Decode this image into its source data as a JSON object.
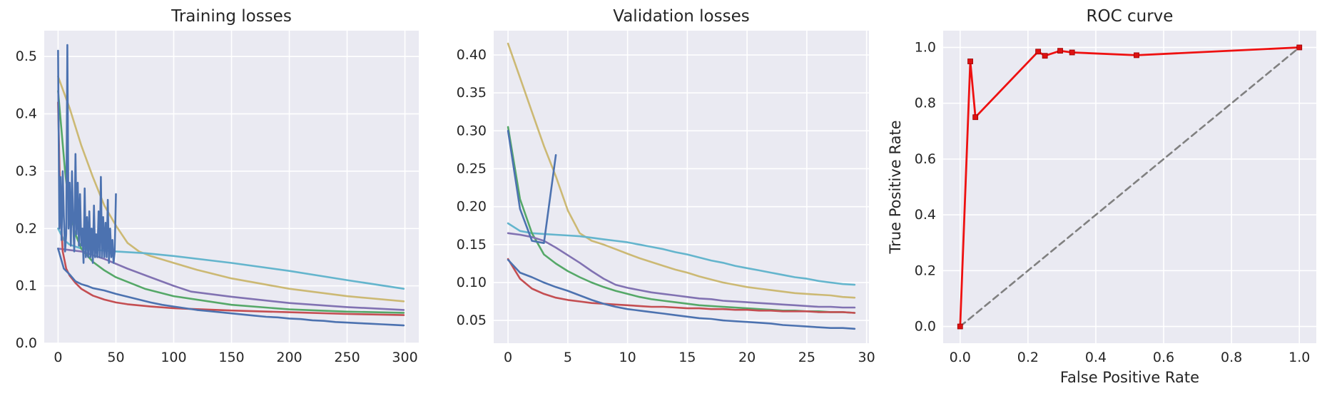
{
  "chart_data": [
    {
      "type": "line",
      "title": "Training losses",
      "xlabel": "",
      "ylabel": "",
      "xlim": [
        -12,
        312
      ],
      "ylim": [
        0,
        0.545
      ],
      "xticks": [
        "0",
        "50",
        "100",
        "150",
        "200",
        "250",
        "300"
      ],
      "yticks": [
        "0.0",
        "0.1",
        "0.2",
        "0.3",
        "0.4",
        "0.5"
      ],
      "grid": true,
      "series": [
        {
          "color": "#ccb974",
          "x": [
            0,
            10,
            20,
            30,
            40,
            50,
            60,
            70,
            80,
            100,
            120,
            150,
            200,
            250,
            299
          ],
          "y": [
            0.465,
            0.41,
            0.345,
            0.29,
            0.24,
            0.205,
            0.175,
            0.16,
            0.152,
            0.14,
            0.128,
            0.113,
            0.095,
            0.082,
            0.073
          ]
        },
        {
          "color": "#64b5cd",
          "x": [
            0,
            5,
            10,
            20,
            30,
            50,
            75,
            100,
            150,
            200,
            250,
            299
          ],
          "y": [
            0.2,
            0.18,
            0.172,
            0.165,
            0.163,
            0.16,
            0.157,
            0.152,
            0.14,
            0.126,
            0.11,
            0.095
          ]
        },
        {
          "color": "#55a868",
          "x": [
            0,
            3,
            6,
            10,
            15,
            20,
            30,
            40,
            50,
            75,
            100,
            150,
            200,
            250,
            299
          ],
          "y": [
            0.44,
            0.37,
            0.3,
            0.23,
            0.19,
            0.165,
            0.142,
            0.127,
            0.115,
            0.095,
            0.082,
            0.067,
            0.059,
            0.055,
            0.053
          ]
        },
        {
          "color": "#8172b2",
          "x": [
            0,
            20,
            40,
            60,
            80,
            100,
            115,
            150,
            200,
            250,
            299
          ],
          "y": [
            0.165,
            0.16,
            0.147,
            0.13,
            0.115,
            0.1,
            0.09,
            0.081,
            0.07,
            0.063,
            0.058
          ]
        },
        {
          "color": "#c44e52",
          "x": [
            0,
            2,
            4,
            7,
            10,
            15,
            20,
            30,
            40,
            50,
            60,
            80,
            100,
            150,
            200,
            250,
            299
          ],
          "y": [
            0.42,
            0.23,
            0.16,
            0.13,
            0.118,
            0.105,
            0.095,
            0.083,
            0.076,
            0.071,
            0.068,
            0.064,
            0.061,
            0.057,
            0.054,
            0.051,
            0.049
          ]
        },
        {
          "color": "#4c72b0",
          "x": [
            0,
            1,
            2,
            3,
            4,
            5,
            6,
            7,
            8,
            9,
            10,
            11,
            12,
            13,
            14,
            15,
            16,
            17,
            18,
            19,
            20,
            21,
            22,
            23,
            24,
            25,
            26,
            27,
            28,
            29,
            30,
            31,
            32,
            33,
            34,
            35,
            36,
            37,
            38,
            39,
            40,
            41,
            42,
            43,
            44,
            45,
            46,
            47,
            48,
            49,
            50
          ],
          "y": [
            0.51,
            0.2,
            0.29,
            0.18,
            0.3,
            0.22,
            0.16,
            0.19,
            0.52,
            0.2,
            0.28,
            0.17,
            0.3,
            0.21,
            0.16,
            0.33,
            0.19,
            0.28,
            0.17,
            0.26,
            0.17,
            0.2,
            0.14,
            0.27,
            0.15,
            0.22,
            0.15,
            0.23,
            0.15,
            0.2,
            0.14,
            0.24,
            0.15,
            0.19,
            0.15,
            0.23,
            0.15,
            0.29,
            0.15,
            0.22,
            0.15,
            0.21,
            0.15,
            0.25,
            0.14,
            0.2,
            0.15,
            0.18,
            0.14,
            0.16,
            0.26
          ]
        },
        {
          "color": "#4c72b0",
          "x": [
            0,
            5,
            10,
            15,
            20,
            25,
            30,
            40,
            50,
            60,
            70,
            80,
            90,
            100,
            110,
            120,
            130,
            140,
            150,
            160,
            170,
            180,
            190,
            200,
            210,
            220,
            230,
            240,
            250,
            260,
            270,
            280,
            290,
            299
          ],
          "y": [
            0.165,
            0.13,
            0.12,
            0.108,
            0.103,
            0.1,
            0.096,
            0.092,
            0.086,
            0.081,
            0.076,
            0.071,
            0.067,
            0.064,
            0.061,
            0.058,
            0.056,
            0.054,
            0.052,
            0.05,
            0.048,
            0.046,
            0.045,
            0.043,
            0.042,
            0.04,
            0.039,
            0.037,
            0.036,
            0.035,
            0.034,
            0.033,
            0.032,
            0.031
          ]
        }
      ]
    },
    {
      "type": "line",
      "title": "Validation losses",
      "xlabel": "",
      "ylabel": "",
      "xlim": [
        -1.2,
        30.2
      ],
      "ylim": [
        0.02,
        0.432
      ],
      "xticks": [
        "0",
        "5",
        "10",
        "15",
        "20",
        "25",
        "30"
      ],
      "yticks": [
        "0.05",
        "0.10",
        "0.15",
        "0.20",
        "0.25",
        "0.30",
        "0.35",
        "0.40"
      ],
      "grid": true,
      "series": [
        {
          "color": "#ccb974",
          "x": [
            0,
            1,
            2,
            3,
            4,
            5,
            6,
            7,
            8,
            9,
            10,
            11,
            12,
            13,
            14,
            15,
            16,
            17,
            18,
            19,
            20,
            21,
            22,
            23,
            24,
            25,
            26,
            27,
            28,
            29
          ],
          "y": [
            0.415,
            0.37,
            0.325,
            0.28,
            0.24,
            0.195,
            0.165,
            0.155,
            0.15,
            0.144,
            0.138,
            0.132,
            0.127,
            0.122,
            0.117,
            0.113,
            0.108,
            0.104,
            0.1,
            0.097,
            0.094,
            0.092,
            0.09,
            0.088,
            0.086,
            0.085,
            0.084,
            0.083,
            0.081,
            0.08
          ]
        },
        {
          "color": "#64b5cd",
          "x": [
            0,
            1,
            2,
            3,
            4,
            5,
            6,
            7,
            8,
            9,
            10,
            11,
            12,
            13,
            14,
            15,
            16,
            17,
            18,
            19,
            20,
            21,
            22,
            23,
            24,
            25,
            26,
            27,
            28,
            29
          ],
          "y": [
            0.178,
            0.168,
            0.165,
            0.164,
            0.163,
            0.162,
            0.161,
            0.159,
            0.157,
            0.155,
            0.153,
            0.15,
            0.147,
            0.144,
            0.14,
            0.137,
            0.133,
            0.129,
            0.126,
            0.122,
            0.119,
            0.116,
            0.113,
            0.11,
            0.107,
            0.105,
            0.102,
            0.1,
            0.098,
            0.097
          ]
        },
        {
          "color": "#55a868",
          "x": [
            0,
            1,
            2,
            3,
            4,
            5,
            6,
            7,
            8,
            9,
            10,
            11,
            12,
            13,
            14,
            15,
            16,
            17,
            18,
            19,
            20,
            21,
            22,
            23,
            24,
            25,
            26,
            27,
            28,
            29
          ],
          "y": [
            0.305,
            0.21,
            0.165,
            0.137,
            0.125,
            0.115,
            0.107,
            0.1,
            0.094,
            0.089,
            0.085,
            0.081,
            0.078,
            0.076,
            0.074,
            0.072,
            0.07,
            0.069,
            0.068,
            0.067,
            0.066,
            0.065,
            0.064,
            0.063,
            0.063,
            0.062,
            0.062,
            0.061,
            0.061,
            0.06
          ]
        },
        {
          "color": "#8172b2",
          "x": [
            0,
            1,
            2,
            3,
            4,
            5,
            6,
            7,
            8,
            9,
            10,
            11,
            12,
            13,
            14,
            15,
            16,
            17,
            18,
            19,
            20,
            21,
            22,
            23,
            24,
            25,
            26,
            27,
            28,
            29
          ],
          "y": [
            0.165,
            0.163,
            0.16,
            0.155,
            0.146,
            0.136,
            0.126,
            0.115,
            0.105,
            0.097,
            0.093,
            0.09,
            0.087,
            0.085,
            0.083,
            0.081,
            0.079,
            0.078,
            0.076,
            0.075,
            0.074,
            0.073,
            0.072,
            0.071,
            0.07,
            0.069,
            0.068,
            0.068,
            0.067,
            0.067
          ]
        },
        {
          "color": "#c44e52",
          "x": [
            0,
            1,
            2,
            3,
            4,
            5,
            6,
            7,
            8,
            9,
            10,
            11,
            12,
            13,
            14,
            15,
            16,
            17,
            18,
            19,
            20,
            21,
            22,
            23,
            24,
            25,
            26,
            27,
            28,
            29
          ],
          "y": [
            0.131,
            0.105,
            0.092,
            0.085,
            0.08,
            0.077,
            0.075,
            0.073,
            0.072,
            0.071,
            0.07,
            0.069,
            0.068,
            0.068,
            0.067,
            0.066,
            0.066,
            0.065,
            0.065,
            0.064,
            0.064,
            0.063,
            0.063,
            0.062,
            0.062,
            0.062,
            0.061,
            0.061,
            0.061,
            0.06
          ]
        },
        {
          "color": "#4c72b0",
          "x": [
            0,
            1,
            2,
            3,
            4
          ],
          "y": [
            0.3,
            0.197,
            0.155,
            0.152,
            0.268
          ]
        },
        {
          "color": "#4c72b0",
          "x": [
            0,
            1,
            2,
            3,
            4,
            5,
            6,
            7,
            8,
            9,
            10,
            11,
            12,
            13,
            14,
            15,
            16,
            17,
            18,
            19,
            20,
            21,
            22,
            23,
            24,
            25,
            26,
            27,
            28,
            29
          ],
          "y": [
            0.13,
            0.113,
            0.107,
            0.1,
            0.094,
            0.089,
            0.083,
            0.077,
            0.072,
            0.068,
            0.065,
            0.063,
            0.061,
            0.059,
            0.057,
            0.055,
            0.053,
            0.052,
            0.05,
            0.049,
            0.048,
            0.047,
            0.046,
            0.044,
            0.043,
            0.042,
            0.041,
            0.04,
            0.04,
            0.039
          ]
        }
      ]
    },
    {
      "type": "line",
      "title": "ROC curve",
      "xlabel": "False Positive Rate",
      "ylabel": "True Positive Rate",
      "xlim": [
        -0.05,
        1.05
      ],
      "ylim": [
        -0.06,
        1.06
      ],
      "xticks": [
        "0.0",
        "0.2",
        "0.4",
        "0.6",
        "0.8",
        "1.0"
      ],
      "yticks": [
        "0.0",
        "0.2",
        "0.4",
        "0.6",
        "0.8",
        "1.0"
      ],
      "grid": true,
      "series": [
        {
          "color": "#808080",
          "dashed": true,
          "markers": false,
          "x": [
            0,
            1
          ],
          "y": [
            0,
            1
          ]
        },
        {
          "color": "#ee1111",
          "dashed": false,
          "markers": true,
          "x": [
            0.0,
            0.03,
            0.045,
            0.23,
            0.25,
            0.295,
            0.33,
            0.52,
            1.0
          ],
          "y": [
            0.0,
            0.95,
            0.75,
            0.985,
            0.97,
            0.988,
            0.982,
            0.972,
            1.0
          ]
        }
      ]
    }
  ]
}
